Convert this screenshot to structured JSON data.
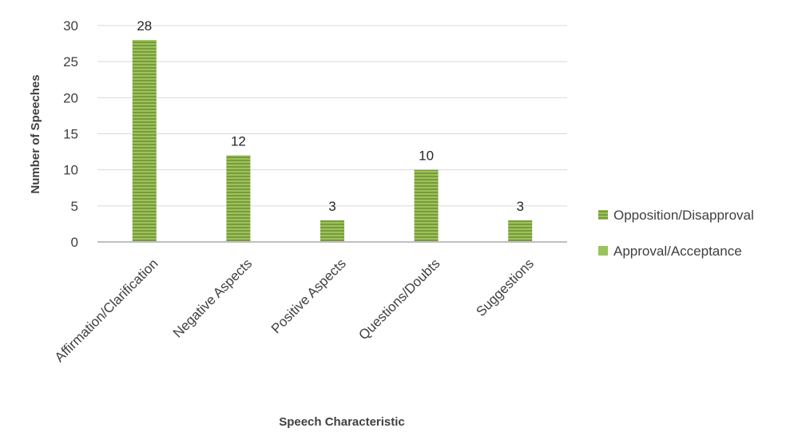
{
  "chart_data": {
    "type": "bar",
    "categories": [
      "Affirmation/Clarification",
      "Negative Aspects",
      "Positive Aspects",
      "Questions/Doubts",
      "Suggestions"
    ],
    "series": [
      {
        "name": "Opposition/Disapproval",
        "values": [
          28,
          12,
          3,
          10,
          3
        ],
        "color": "#7a9a3c"
      },
      {
        "name": "Approval/Acceptance",
        "values": [
          0,
          0,
          0,
          0,
          0
        ],
        "color": "#9bc35a"
      }
    ],
    "data_labels": [
      "28",
      "12",
      "3",
      "10",
      "3"
    ],
    "xlabel": "Speech Characteristic",
    "ylabel": "Number of Speeches",
    "ylim": [
      0,
      30
    ],
    "yticks": [
      0,
      5,
      10,
      15,
      20,
      25,
      30
    ],
    "grid": true,
    "legend_position": "right",
    "bar_pattern": "horizontal-stripes"
  }
}
